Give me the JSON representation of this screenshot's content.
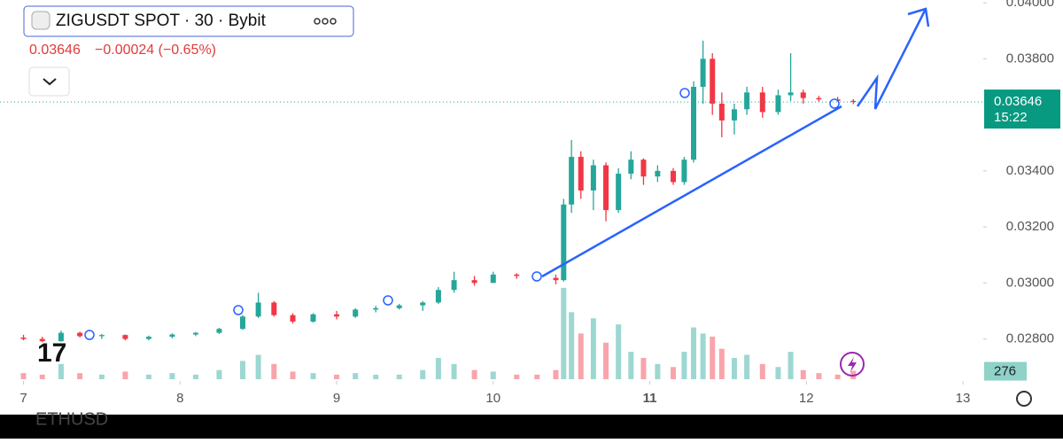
{
  "chart_data": {
    "type": "candlestick",
    "title": "ZIGUSDT SPOT · 30 · Bybit",
    "last_price": 0.03646,
    "change": "−0.00024 (−0.65%)",
    "countdown": "15:22",
    "footer_symbol": "ETHUSD",
    "up_color": "#26a69a",
    "down_color": "#f23645",
    "xlim": [
      6.85,
      13.13
    ],
    "xticks": [
      7,
      8,
      9,
      10,
      11,
      12,
      13
    ],
    "ylim": [
      0.0265,
      0.0401
    ],
    "yticks": [
      {
        "value": 0.028,
        "label": "0.02800"
      },
      {
        "value": 0.03,
        "label": "0.03000"
      },
      {
        "value": 0.032,
        "label": "0.03200"
      },
      {
        "value": 0.034,
        "label": "0.03400"
      },
      {
        "value": 0.038,
        "label": "0.03800"
      },
      {
        "value": 0.04,
        "label": "0.04000"
      }
    ],
    "volume_lim": [
      0,
      3200
    ],
    "last_volume": 276,
    "x": [
      7.0,
      7.12,
      7.24,
      7.36,
      7.5,
      7.65,
      7.8,
      7.95,
      8.1,
      8.25,
      8.4,
      8.5,
      8.6,
      8.72,
      8.85,
      9.0,
      9.12,
      9.25,
      9.4,
      9.55,
      9.65,
      9.75,
      9.88,
      10.0,
      10.15,
      10.28,
      10.4,
      10.45,
      10.5,
      10.56,
      10.64,
      10.72,
      10.8,
      10.88,
      10.96,
      11.05,
      11.15,
      11.22,
      11.28,
      11.34,
      11.4,
      11.46,
      11.54,
      11.62,
      11.72,
      11.82,
      11.9,
      11.98,
      12.08,
      12.2,
      12.3
    ],
    "open": [
      0.02805,
      0.028,
      0.02792,
      0.02822,
      0.0281,
      0.02814,
      0.028,
      0.02808,
      0.02816,
      0.02822,
      0.02836,
      0.0288,
      0.0293,
      0.02885,
      0.02862,
      0.02888,
      0.0288,
      0.02905,
      0.0291,
      0.0292,
      0.0293,
      0.02975,
      0.0301,
      0.03,
      0.0303,
      0.03025,
      0.03018,
      0.0301,
      0.0328,
      0.0345,
      0.0333,
      0.0342,
      0.0326,
      0.0339,
      0.0344,
      0.0338,
      0.034,
      0.0336,
      0.0344,
      0.037,
      0.038,
      0.0364,
      0.0358,
      0.0362,
      0.0368,
      0.0361,
      0.0367,
      0.0368,
      0.0366,
      0.03655,
      0.0365
    ],
    "high": [
      0.02815,
      0.02808,
      0.0283,
      0.02826,
      0.02818,
      0.02816,
      0.02812,
      0.0282,
      0.02825,
      0.0284,
      0.02885,
      0.02965,
      0.02935,
      0.02892,
      0.02892,
      0.029,
      0.0291,
      0.02918,
      0.02925,
      0.02935,
      0.02985,
      0.0304,
      0.03025,
      0.0304,
      0.03035,
      0.03032,
      0.0303,
      0.033,
      0.0351,
      0.0347,
      0.0344,
      0.0343,
      0.0341,
      0.0347,
      0.03445,
      0.0342,
      0.0341,
      0.0345,
      0.0372,
      0.03865,
      0.0382,
      0.0368,
      0.0364,
      0.037,
      0.037,
      0.0369,
      0.0382,
      0.0369,
      0.03668,
      0.03664,
      0.03656
    ],
    "low": [
      0.02795,
      0.02788,
      0.0279,
      0.02805,
      0.028,
      0.02795,
      0.02795,
      0.02802,
      0.0281,
      0.02818,
      0.02832,
      0.02875,
      0.0288,
      0.02855,
      0.02858,
      0.0287,
      0.02875,
      0.02895,
      0.02905,
      0.029,
      0.02925,
      0.02965,
      0.0299,
      0.03,
      0.03015,
      0.0301,
      0.02995,
      0.03005,
      0.0325,
      0.033,
      0.0326,
      0.0322,
      0.0325,
      0.0337,
      0.0335,
      0.0336,
      0.0335,
      0.0335,
      0.0343,
      0.0364,
      0.036,
      0.0352,
      0.0353,
      0.036,
      0.0359,
      0.036,
      0.0365,
      0.0364,
      0.03648,
      0.0364,
      0.03638
    ],
    "close": [
      0.028,
      0.02792,
      0.02822,
      0.0281,
      0.02814,
      0.028,
      0.02808,
      0.02816,
      0.02822,
      0.02836,
      0.0288,
      0.0293,
      0.02885,
      0.02862,
      0.02888,
      0.0288,
      0.02905,
      0.0291,
      0.0292,
      0.0293,
      0.02975,
      0.0301,
      0.03,
      0.0303,
      0.03025,
      0.03018,
      0.0301,
      0.0328,
      0.0345,
      0.0333,
      0.0342,
      0.0326,
      0.0339,
      0.0344,
      0.0338,
      0.034,
      0.0336,
      0.0344,
      0.037,
      0.038,
      0.0364,
      0.0358,
      0.0362,
      0.0368,
      0.0361,
      0.0367,
      0.0368,
      0.0366,
      0.03655,
      0.0365,
      0.03646
    ],
    "volume": [
      200,
      150,
      500,
      200,
      150,
      250,
      150,
      200,
      150,
      300,
      600,
      800,
      500,
      250,
      200,
      150,
      200,
      150,
      150,
      300,
      700,
      500,
      300,
      250,
      150,
      150,
      300,
      3000,
      2200,
      1500,
      2000,
      1200,
      1800,
      900,
      700,
      500,
      400,
      900,
      1700,
      1500,
      1400,
      1000,
      700,
      800,
      500,
      400,
      900,
      300,
      200,
      150,
      276
    ]
  }
}
